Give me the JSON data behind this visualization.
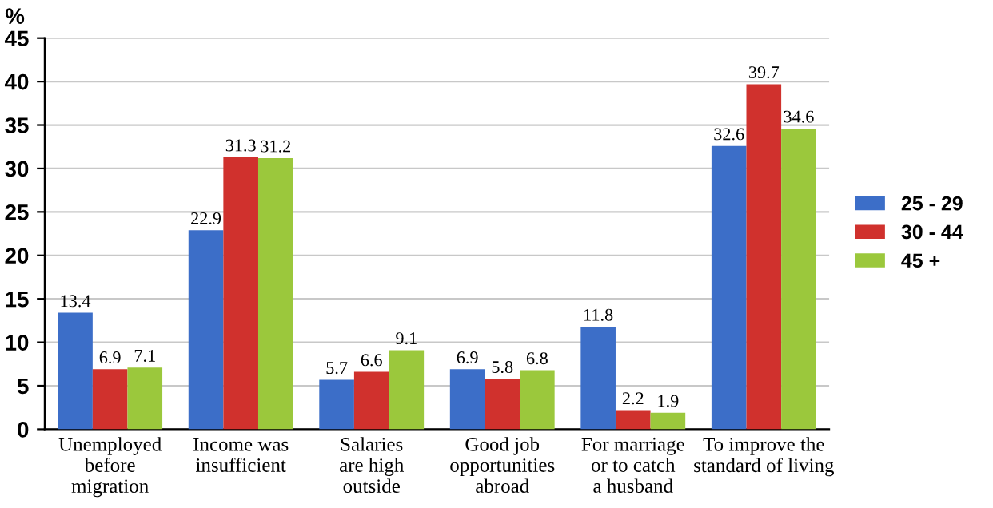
{
  "chart_data": {
    "type": "bar",
    "ylabel": "%",
    "categories": [
      "Unemployed\nbefore\nmigration",
      "Income was\ninsufficient",
      "Salaries\nare high\noutside",
      "Good job\nopportunities\nabroad",
      "For marriage\nor to catch\na husband",
      "To improve the\nstandard of living"
    ],
    "series": [
      {
        "name": "25 - 29",
        "color": "#3c6ec8",
        "values": [
          13.4,
          22.9,
          5.7,
          6.9,
          11.8,
          32.6
        ]
      },
      {
        "name": "30 - 44",
        "color": "#d0312d",
        "values": [
          6.9,
          31.3,
          6.6,
          5.8,
          2.2,
          39.7
        ]
      },
      {
        "name": "45 +",
        "color": "#9bc83c",
        "values": [
          7.1,
          31.2,
          9.1,
          6.8,
          1.9,
          34.6
        ]
      }
    ],
    "ylim": [
      0,
      45
    ],
    "yticks": [
      0,
      5,
      10,
      15,
      20,
      25,
      30,
      35,
      40,
      45
    ],
    "grid": "y",
    "legend": "right",
    "data_labels": true
  }
}
